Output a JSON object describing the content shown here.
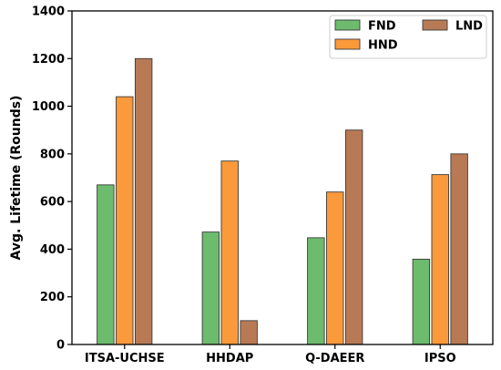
{
  "chart_data": {
    "type": "bar",
    "title": "",
    "xlabel": "",
    "ylabel": "Avg. Lifetime (Rounds)",
    "ylim": [
      0,
      1400
    ],
    "yticks": [
      0,
      200,
      400,
      600,
      800,
      1000,
      1200,
      1400
    ],
    "grid": false,
    "legend_position": "top-right",
    "categories": [
      "ITSA-UCHSE",
      "HHDAP",
      "Q-DAEER",
      "IPSO"
    ],
    "series": [
      {
        "name": "FND",
        "color": "#6dbb6d",
        "values": [
          670,
          472,
          448,
          358
        ]
      },
      {
        "name": "HND",
        "color": "#fb9a3a",
        "values": [
          1040,
          770,
          640,
          713
        ]
      },
      {
        "name": "LND",
        "color": "#b87a55",
        "values": [
          1200,
          100,
          900,
          800
        ]
      }
    ]
  }
}
